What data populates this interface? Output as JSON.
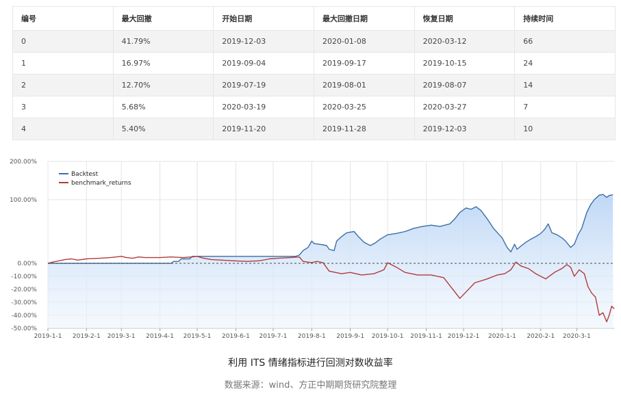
{
  "table": {
    "headers": [
      "编号",
      "最大回撤",
      "开始日期",
      "最大回撤日期",
      "恢复日期",
      "持续时间"
    ],
    "rows": [
      [
        "0",
        "41.79%",
        "2019-12-03",
        "2020-01-08",
        "2020-03-12",
        "66"
      ],
      [
        "1",
        "16.97%",
        "2019-09-04",
        "2019-09-17",
        "2019-10-15",
        "24"
      ],
      [
        "2",
        "12.70%",
        "2019-07-19",
        "2019-08-01",
        "2019-08-07",
        "14"
      ],
      [
        "3",
        "5.68%",
        "2020-03-19",
        "2020-03-25",
        "2020-03-27",
        "7"
      ],
      [
        "4",
        "5.40%",
        "2019-11-20",
        "2019-11-28",
        "2019-12-03",
        "10"
      ]
    ]
  },
  "chart_data": {
    "type": "line",
    "ylim": [
      -50,
      200
    ],
    "yticks": [
      200,
      100,
      0,
      -10,
      -20,
      -30,
      -40,
      -50
    ],
    "ytick_labels": [
      "200.00%",
      "100.00%",
      "0.00%",
      "-10.00%",
      "-20.00%",
      "-30.00%",
      "-40.00%",
      "-50.00%"
    ],
    "xlim": [
      "2019-01-01",
      "2020-03-31"
    ],
    "xticks": [
      "2019-01-01",
      "2019-02-01",
      "2019-03-01",
      "2019-04-01",
      "2019-05-01",
      "2019-06-01",
      "2019-07-01",
      "2019-08-01",
      "2019-09-01",
      "2019-10-01",
      "2019-11-01",
      "2019-12-01",
      "2020-01-01",
      "2020-02-01",
      "2020-03-01"
    ],
    "xtick_labels": [
      "2019-1-1",
      "2019-2-1",
      "2019-3-1",
      "2019-4-1",
      "2019-5-1",
      "2019-6-1",
      "2019-7-1",
      "2019-8-1",
      "2019-9-1",
      "2019-10-1",
      "2019-11-1",
      "2019-12-1",
      "2020-1-1",
      "2020-2-1",
      "2020-3-1"
    ],
    "legend_position": "top-left",
    "grid": true,
    "series": [
      {
        "name": "Backtest",
        "color": "#3a6ea5",
        "fill": true,
        "points": [
          [
            "2019-01-01",
            0
          ],
          [
            "2019-02-01",
            0
          ],
          [
            "2019-03-01",
            0
          ],
          [
            "2019-04-01",
            0
          ],
          [
            "2019-04-10",
            0
          ],
          [
            "2019-04-12",
            3
          ],
          [
            "2019-04-16",
            3
          ],
          [
            "2019-04-18",
            7
          ],
          [
            "2019-04-25",
            7
          ],
          [
            "2019-04-27",
            11
          ],
          [
            "2019-05-01",
            11
          ],
          [
            "2019-06-01",
            11
          ],
          [
            "2019-07-01",
            11
          ],
          [
            "2019-07-19",
            11
          ],
          [
            "2019-07-22",
            13
          ],
          [
            "2019-07-25",
            20
          ],
          [
            "2019-07-29",
            25
          ],
          [
            "2019-08-01",
            35
          ],
          [
            "2019-08-03",
            31
          ],
          [
            "2019-08-07",
            30
          ],
          [
            "2019-08-10",
            29
          ],
          [
            "2019-08-13",
            28
          ],
          [
            "2019-08-15",
            22
          ],
          [
            "2019-08-19",
            20
          ],
          [
            "2019-08-21",
            35
          ],
          [
            "2019-08-25",
            42
          ],
          [
            "2019-08-29",
            48
          ],
          [
            "2019-09-04",
            50
          ],
          [
            "2019-09-08",
            41
          ],
          [
            "2019-09-12",
            33
          ],
          [
            "2019-09-17",
            28
          ],
          [
            "2019-09-21",
            32
          ],
          [
            "2019-09-25",
            38
          ],
          [
            "2019-10-01",
            45
          ],
          [
            "2019-10-08",
            47
          ],
          [
            "2019-10-15",
            50
          ],
          [
            "2019-10-22",
            55
          ],
          [
            "2019-10-29",
            58
          ],
          [
            "2019-11-05",
            60
          ],
          [
            "2019-11-12",
            58
          ],
          [
            "2019-11-20",
            62
          ],
          [
            "2019-11-24",
            70
          ],
          [
            "2019-11-28",
            80
          ],
          [
            "2019-12-03",
            87
          ],
          [
            "2019-12-07",
            85
          ],
          [
            "2019-12-11",
            89
          ],
          [
            "2019-12-15",
            83
          ],
          [
            "2019-12-20",
            70
          ],
          [
            "2019-12-25",
            55
          ],
          [
            "2020-01-01",
            40
          ],
          [
            "2020-01-05",
            25
          ],
          [
            "2020-01-08",
            18
          ],
          [
            "2020-01-11",
            30
          ],
          [
            "2020-01-13",
            22
          ],
          [
            "2020-01-16",
            27
          ],
          [
            "2020-01-20",
            33
          ],
          [
            "2020-01-24",
            38
          ],
          [
            "2020-01-28",
            42
          ],
          [
            "2020-02-01",
            47
          ],
          [
            "2020-02-04",
            53
          ],
          [
            "2020-02-07",
            62
          ],
          [
            "2020-02-10",
            48
          ],
          [
            "2020-02-14",
            45
          ],
          [
            "2020-02-18",
            40
          ],
          [
            "2020-02-21",
            35
          ],
          [
            "2020-02-25",
            25
          ],
          [
            "2020-02-28",
            30
          ],
          [
            "2020-03-02",
            45
          ],
          [
            "2020-03-05",
            55
          ],
          [
            "2020-03-09",
            80
          ],
          [
            "2020-03-12",
            92
          ],
          [
            "2020-03-15",
            100
          ],
          [
            "2020-03-19",
            112
          ],
          [
            "2020-03-22",
            114
          ],
          [
            "2020-03-25",
            106
          ],
          [
            "2020-03-27",
            111
          ],
          [
            "2020-03-30",
            113
          ]
        ]
      },
      {
        "name": "benchmark_returns",
        "color": "#b03a3a",
        "fill": false,
        "points": [
          [
            "2019-01-01",
            0
          ],
          [
            "2019-01-05",
            2
          ],
          [
            "2019-01-10",
            4
          ],
          [
            "2019-01-15",
            6
          ],
          [
            "2019-01-20",
            7
          ],
          [
            "2019-01-25",
            5
          ],
          [
            "2019-02-01",
            7
          ],
          [
            "2019-02-12",
            8
          ],
          [
            "2019-02-20",
            9
          ],
          [
            "2019-02-25",
            10
          ],
          [
            "2019-03-01",
            11
          ],
          [
            "2019-03-05",
            9
          ],
          [
            "2019-03-10",
            8
          ],
          [
            "2019-03-15",
            10
          ],
          [
            "2019-03-20",
            9
          ],
          [
            "2019-04-01",
            9
          ],
          [
            "2019-04-10",
            10
          ],
          [
            "2019-04-20",
            9
          ],
          [
            "2019-04-26",
            10
          ],
          [
            "2019-05-01",
            11
          ],
          [
            "2019-05-06",
            8
          ],
          [
            "2019-05-12",
            6
          ],
          [
            "2019-05-20",
            5
          ],
          [
            "2019-05-30",
            4
          ],
          [
            "2019-06-10",
            3
          ],
          [
            "2019-06-20",
            4
          ],
          [
            "2019-06-28",
            7
          ],
          [
            "2019-07-05",
            8
          ],
          [
            "2019-07-15",
            9
          ],
          [
            "2019-07-22",
            10
          ],
          [
            "2019-07-25",
            3
          ],
          [
            "2019-08-01",
            1
          ],
          [
            "2019-08-05",
            3
          ],
          [
            "2019-08-10",
            1
          ],
          [
            "2019-08-15",
            -6
          ],
          [
            "2019-08-25",
            -8
          ],
          [
            "2019-09-01",
            -7
          ],
          [
            "2019-09-10",
            -9
          ],
          [
            "2019-09-20",
            -8
          ],
          [
            "2019-09-28",
            -5
          ],
          [
            "2019-10-01",
            1
          ],
          [
            "2019-10-08",
            -3
          ],
          [
            "2019-10-15",
            -7
          ],
          [
            "2019-10-25",
            -9
          ],
          [
            "2019-11-05",
            -9
          ],
          [
            "2019-11-15",
            -11
          ],
          [
            "2019-11-24",
            -22
          ],
          [
            "2019-11-28",
            -27
          ],
          [
            "2019-12-03",
            -22
          ],
          [
            "2019-12-10",
            -15
          ],
          [
            "2019-12-20",
            -12
          ],
          [
            "2019-12-28",
            -9
          ],
          [
            "2020-01-03",
            -8
          ],
          [
            "2020-01-08",
            -5
          ],
          [
            "2020-01-12",
            2
          ],
          [
            "2020-01-16",
            -2
          ],
          [
            "2020-01-22",
            -4
          ],
          [
            "2020-01-28",
            -8
          ],
          [
            "2020-02-05",
            -12
          ],
          [
            "2020-02-12",
            -7
          ],
          [
            "2020-02-18",
            -4
          ],
          [
            "2020-02-22",
            -1
          ],
          [
            "2020-02-25",
            -3
          ],
          [
            "2020-02-28",
            -10
          ],
          [
            "2020-03-03",
            -5
          ],
          [
            "2020-03-07",
            -8
          ],
          [
            "2020-03-10",
            -18
          ],
          [
            "2020-03-13",
            -23
          ],
          [
            "2020-03-16",
            -26
          ],
          [
            "2020-03-19",
            -40
          ],
          [
            "2020-03-22",
            -38
          ],
          [
            "2020-03-25",
            -45
          ],
          [
            "2020-03-27",
            -40
          ],
          [
            "2020-03-29",
            -33
          ],
          [
            "2020-03-31",
            -35
          ]
        ]
      }
    ]
  },
  "caption": {
    "title": "利用 ITS 情绪指标进行回测对数收益率",
    "source": "数据来源：wind、方正中期期货研究院整理"
  }
}
